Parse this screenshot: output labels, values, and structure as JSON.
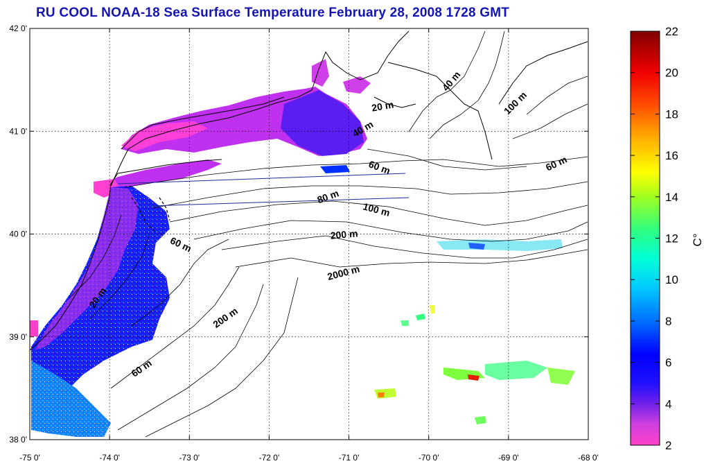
{
  "title": "RU COOL  NOAA-18 Sea Surface Temperature February 28, 2008 1728 GMT",
  "map": {
    "lon_ticks": [
      "-75 0'",
      "-74 0'",
      "-73 0'",
      "-72 0'",
      "-71 0'",
      "-70 0'",
      "-69 0'",
      "-68 0'"
    ],
    "lat_ticks": [
      "42 0'",
      "41 0'",
      "40 0'",
      "39 0'",
      "38 0'"
    ],
    "lon_range": [
      -75,
      -68
    ],
    "lat_range": [
      38,
      42
    ],
    "grid": true,
    "contour_labels": [
      {
        "text": "40 m"
      },
      {
        "text": "20 m"
      },
      {
        "text": "40 m"
      },
      {
        "text": "100 m"
      },
      {
        "text": "60 m"
      },
      {
        "text": "60 m"
      },
      {
        "text": "80 m"
      },
      {
        "text": "100 m"
      },
      {
        "text": "200 m"
      },
      {
        "text": "60 m"
      },
      {
        "text": "2000 m"
      },
      {
        "text": "20 m"
      },
      {
        "text": "200 m"
      },
      {
        "text": "60 m"
      }
    ]
  },
  "colorbar": {
    "unit": "C°",
    "ticks": [
      "22",
      "20",
      "18",
      "16",
      "14",
      "12",
      "10",
      "8",
      "6",
      "4",
      "2"
    ],
    "range": [
      2,
      22
    ],
    "colors": [
      "#ff3cc8",
      "#a020f0",
      "#3030ff",
      "#0000ff",
      "#0070ff",
      "#00d0ff",
      "#00ffb0",
      "#80ff40",
      "#e0ff00",
      "#ffd000",
      "#ff8000",
      "#ff2000",
      "#c00000",
      "#800000"
    ]
  }
}
